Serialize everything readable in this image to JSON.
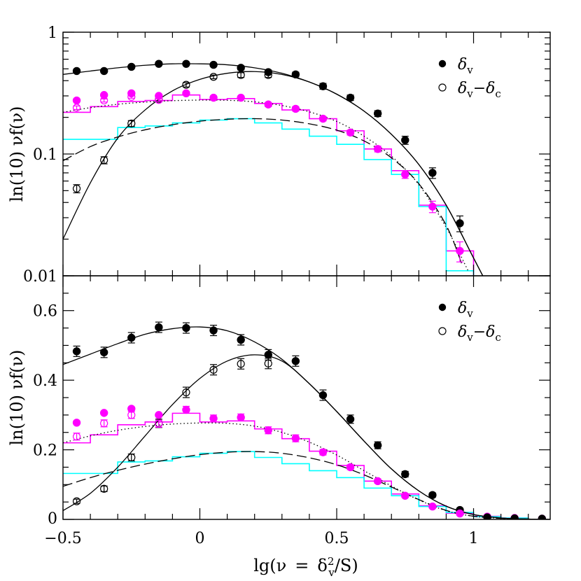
{
  "figure": {
    "xlabel": "lg(ν = δ_v²/S)",
    "xlabel_parts": {
      "pre": "lg(ν",
      "eq": "=",
      "delta": "δ",
      "sub": "v",
      "sup": "2",
      "post": "/S)"
    },
    "xlim": [
      -0.5,
      1.28
    ],
    "x_ticks": [
      -0.5,
      0,
      0.5,
      1
    ],
    "x_tick_labels": [
      "−0.5",
      "0",
      "0.5",
      "1"
    ]
  },
  "chart_data": [
    {
      "type": "scatter",
      "panel": "top",
      "ylabel": "ln(10) νf(ν)",
      "yscale": "log",
      "ylim": [
        0.01,
        1
      ],
      "y_ticks": [
        0.01,
        0.1,
        1
      ],
      "y_tick_labels": [
        "0.01",
        "0.1",
        "1"
      ],
      "legend_placement": "top-right",
      "legend": [
        {
          "marker": "filled-circle",
          "label": "δv",
          "parts": [
            "δ",
            "v"
          ]
        },
        {
          "marker": "open-circle",
          "label": "δv−δc",
          "parts": [
            "δ",
            "v",
            "−δ",
            "c"
          ]
        }
      ],
      "series": [
        {
          "marker": "filled-circle",
          "color": "#000000",
          "x": [
            -0.45,
            -0.35,
            -0.25,
            -0.15,
            -0.05,
            0.05,
            0.15,
            0.25,
            0.35,
            0.45,
            0.55,
            0.65,
            0.75,
            0.85,
            0.95
          ],
          "y": [
            0.48,
            0.48,
            0.52,
            0.55,
            0.55,
            0.54,
            0.51,
            0.47,
            0.45,
            0.36,
            0.29,
            0.215,
            0.13,
            0.07,
            0.027
          ],
          "err": [
            0,
            0,
            0,
            0,
            0,
            0,
            0.02,
            0.02,
            0.02,
            0.02,
            0.015,
            0.012,
            0.01,
            0.007,
            0.004
          ]
        },
        {
          "marker": "open-circle",
          "color": "#000000",
          "x": [
            -0.45,
            -0.35,
            -0.25,
            -0.15,
            -0.05,
            0.05,
            0.15,
            0.25
          ],
          "y": [
            0.052,
            0.089,
            0.178,
            0.28,
            0.37,
            0.43,
            0.445,
            0.445
          ],
          "err": [
            0.004,
            0.006,
            0.01,
            0.012,
            0.015,
            0.015,
            0.02,
            0.02
          ]
        },
        {
          "marker": "filled-circle",
          "color": "#ff00ff",
          "x": [
            -0.45,
            -0.35,
            -0.25,
            -0.15,
            -0.05,
            0.05,
            0.15,
            0.25,
            0.35,
            0.45,
            0.55,
            0.65,
            0.75,
            0.85,
            0.95
          ],
          "y": [
            0.275,
            0.305,
            0.315,
            0.3,
            0.315,
            0.29,
            0.29,
            0.255,
            0.235,
            0.195,
            0.15,
            0.11,
            0.068,
            0.037,
            0.016
          ],
          "err": [
            0,
            0,
            0,
            0,
            0,
            0,
            0,
            0.01,
            0.01,
            0.008,
            0.007,
            0.006,
            0.005,
            0.004,
            0.003
          ]
        },
        {
          "marker": "open-circle",
          "color": "#ff00ff",
          "x": [
            -0.45,
            -0.35,
            -0.25,
            -0.15
          ],
          "y": [
            0.24,
            0.275,
            0.295,
            0.278
          ],
          "err": [
            0.008,
            0.008,
            0.008,
            0.008
          ]
        }
      ],
      "histograms": [
        {
          "color": "#ff00ff",
          "edges": [
            -0.5,
            -0.4,
            -0.3,
            -0.2,
            -0.1,
            0,
            0.1,
            0.2,
            0.3,
            0.4,
            0.5,
            0.6,
            0.7,
            0.8,
            0.9,
            1.0
          ],
          "values": [
            0.22,
            0.245,
            0.27,
            0.275,
            0.305,
            0.28,
            0.285,
            0.26,
            0.23,
            0.195,
            0.155,
            0.11,
            0.073,
            0.038,
            0.016
          ]
        },
        {
          "color": "#00ffff",
          "edges": [
            -0.5,
            -0.4,
            -0.3,
            -0.2,
            -0.1,
            0,
            0.1,
            0.2,
            0.3,
            0.4,
            0.5,
            0.6,
            0.7,
            0.8,
            0.9,
            1.0
          ],
          "values": [
            0.132,
            0.132,
            0.165,
            0.17,
            0.18,
            0.19,
            0.195,
            0.18,
            0.16,
            0.14,
            0.12,
            0.09,
            0.068,
            0.037,
            0.011
          ]
        }
      ],
      "curves": [
        {
          "style": "solid",
          "color": "#000000",
          "x": [
            -0.5,
            -0.4,
            -0.3,
            -0.2,
            -0.1,
            0,
            0.1,
            0.2,
            0.3,
            0.4,
            0.5,
            0.6,
            0.7,
            0.8,
            0.9,
            1.0,
            1.05
          ],
          "y": [
            0.45,
            0.48,
            0.51,
            0.535,
            0.55,
            0.55,
            0.54,
            0.51,
            0.46,
            0.39,
            0.31,
            0.225,
            0.145,
            0.082,
            0.038,
            0.014,
            0.0085
          ]
        },
        {
          "style": "solid",
          "color": "#000000",
          "x": [
            -0.5,
            -0.4,
            -0.3,
            -0.2,
            -0.1,
            0,
            0.1,
            0.2,
            0.3,
            0.4,
            0.5,
            0.6,
            0.7,
            0.8,
            0.9,
            1.0,
            1.05
          ],
          "y": [
            0.02,
            0.058,
            0.135,
            0.23,
            0.33,
            0.41,
            0.46,
            0.475,
            0.45,
            0.39,
            0.31,
            0.225,
            0.145,
            0.082,
            0.038,
            0.014,
            0.0085
          ]
        },
        {
          "style": "dotted",
          "color": "#000000",
          "x": [
            -0.5,
            -0.4,
            -0.3,
            -0.2,
            -0.1,
            0,
            0.1,
            0.2,
            0.3,
            0.4,
            0.5,
            0.6,
            0.7,
            0.8,
            0.9,
            0.98
          ],
          "y": [
            0.22,
            0.24,
            0.256,
            0.267,
            0.274,
            0.277,
            0.276,
            0.268,
            0.25,
            0.222,
            0.185,
            0.14,
            0.096,
            0.056,
            0.025,
            0.011
          ]
        },
        {
          "style": "dashed",
          "color": "#000000",
          "x": [
            -0.5,
            -0.4,
            -0.3,
            -0.2,
            -0.1,
            0,
            0.1,
            0.2,
            0.3,
            0.4,
            0.5,
            0.6,
            0.7,
            0.8,
            0.9,
            0.96
          ],
          "y": [
            0.088,
            0.115,
            0.138,
            0.158,
            0.174,
            0.186,
            0.193,
            0.195,
            0.19,
            0.177,
            0.157,
            0.128,
            0.093,
            0.057,
            0.026,
            0.012
          ]
        }
      ]
    },
    {
      "type": "scatter",
      "panel": "bottom",
      "ylabel": "ln(10) νf(ν)",
      "yscale": "linear",
      "ylim": [
        0,
        0.7
      ],
      "y_ticks": [
        0,
        0.2,
        0.4,
        0.6
      ],
      "y_tick_labels": [
        "0",
        "0.2",
        "0.4",
        "0.6"
      ],
      "legend_placement": "top-right",
      "legend": [
        {
          "marker": "filled-circle",
          "label": "δv",
          "parts": [
            "δ",
            "v"
          ]
        },
        {
          "marker": "open-circle",
          "label": "δv−δc",
          "parts": [
            "δ",
            "v",
            "−δ",
            "c"
          ]
        }
      ],
      "series": [
        {
          "marker": "filled-circle",
          "color": "#000000",
          "x": [
            -0.45,
            -0.35,
            -0.25,
            -0.15,
            -0.05,
            0.05,
            0.15,
            0.25,
            0.35,
            0.45,
            0.55,
            0.65,
            0.75,
            0.85,
            0.95
          ],
          "y": [
            0.483,
            0.48,
            0.522,
            0.552,
            0.55,
            0.543,
            0.516,
            0.473,
            0.455,
            0.357,
            0.288,
            0.213,
            0.13,
            0.07,
            0.027
          ],
          "err": [
            0.015,
            0.015,
            0.015,
            0.015,
            0.015,
            0.015,
            0.015,
            0.015,
            0.015,
            0.015,
            0.012,
            0.01,
            0.008,
            0.006,
            0.004
          ]
        },
        {
          "marker": "open-circle",
          "color": "#000000",
          "x": [
            -0.45,
            -0.35,
            -0.25,
            -0.15,
            -0.05,
            0.05,
            0.15,
            0.25
          ],
          "y": [
            0.052,
            0.088,
            0.178,
            0.276,
            0.365,
            0.43,
            0.447,
            0.448
          ],
          "err": [
            0.006,
            0.008,
            0.01,
            0.012,
            0.015,
            0.015,
            0.015,
            0.015
          ]
        },
        {
          "marker": "filled-circle",
          "color": "#ff00ff",
          "x": [
            -0.45,
            -0.35,
            -0.25,
            -0.15,
            -0.05,
            0.05,
            0.15,
            0.25,
            0.35,
            0.45,
            0.55,
            0.65,
            0.75,
            0.85,
            0.95,
            1.05,
            1.15,
            1.25
          ],
          "y": [
            0.278,
            0.306,
            0.318,
            0.3,
            0.315,
            0.29,
            0.293,
            0.256,
            0.233,
            0.193,
            0.15,
            0.11,
            0.068,
            0.037,
            0.017,
            0.008,
            0.004,
            0.002
          ],
          "err": [
            0,
            0,
            0,
            0,
            0.01,
            0.01,
            0.01,
            0.01,
            0.01,
            0.008,
            0.007,
            0.006,
            0.005,
            0.004,
            0.003,
            0,
            0,
            0
          ]
        },
        {
          "marker": "open-circle",
          "color": "#ff00ff",
          "x": [
            -0.45,
            -0.35,
            -0.25,
            -0.15
          ],
          "y": [
            0.238,
            0.276,
            0.3,
            0.275
          ],
          "err": [
            0.01,
            0.01,
            0.01,
            0.01
          ]
        },
        {
          "marker": "filled-circle",
          "color": "#000000",
          "x": [
            1.05,
            1.15,
            1.25
          ],
          "y": [
            0.006,
            0.003,
            0.002
          ],
          "err": [
            0,
            0,
            0
          ]
        }
      ],
      "histograms": [
        {
          "color": "#ff00ff",
          "edges": [
            -0.5,
            -0.4,
            -0.3,
            -0.2,
            -0.1,
            0,
            0.1,
            0.2,
            0.3,
            0.4,
            0.5,
            0.6,
            0.7,
            0.8,
            0.9,
            1.0,
            1.1,
            1.2
          ],
          "values": [
            0.22,
            0.243,
            0.272,
            0.28,
            0.305,
            0.28,
            0.283,
            0.26,
            0.232,
            0.196,
            0.155,
            0.11,
            0.073,
            0.039,
            0.018,
            0.009,
            0.004
          ]
        },
        {
          "color": "#00ffff",
          "edges": [
            -0.5,
            -0.4,
            -0.3,
            -0.2,
            -0.1,
            0,
            0.1,
            0.2,
            0.3,
            0.4,
            0.5,
            0.6,
            0.7,
            0.8,
            0.9,
            1.0,
            1.1,
            1.2
          ],
          "values": [
            0.132,
            0.132,
            0.165,
            0.168,
            0.18,
            0.19,
            0.195,
            0.178,
            0.16,
            0.14,
            0.12,
            0.09,
            0.068,
            0.037,
            0.02,
            0.008,
            0.004
          ]
        }
      ],
      "curves": [
        {
          "style": "solid",
          "color": "#000000",
          "x": [
            -0.5,
            -0.4,
            -0.3,
            -0.2,
            -0.1,
            0,
            0.1,
            0.2,
            0.3,
            0.4,
            0.5,
            0.6,
            0.7,
            0.8,
            0.9,
            1.0,
            1.1,
            1.2,
            1.28
          ],
          "y": [
            0.445,
            0.475,
            0.505,
            0.532,
            0.548,
            0.553,
            0.542,
            0.51,
            0.46,
            0.39,
            0.31,
            0.225,
            0.145,
            0.082,
            0.038,
            0.014,
            0.004,
            0.001,
            0
          ]
        },
        {
          "style": "solid",
          "color": "#000000",
          "x": [
            -0.5,
            -0.4,
            -0.3,
            -0.2,
            -0.1,
            0,
            0.1,
            0.2,
            0.3,
            0.4,
            0.5,
            0.6,
            0.7,
            0.8,
            0.9,
            1.0,
            1.1,
            1.2,
            1.28
          ],
          "y": [
            0.025,
            0.075,
            0.15,
            0.24,
            0.33,
            0.405,
            0.455,
            0.473,
            0.455,
            0.39,
            0.31,
            0.225,
            0.145,
            0.082,
            0.038,
            0.014,
            0.004,
            0.001,
            0
          ]
        },
        {
          "style": "dotted",
          "color": "#000000",
          "x": [
            -0.5,
            -0.4,
            -0.3,
            -0.2,
            -0.1,
            0,
            0.1,
            0.2,
            0.3,
            0.4,
            0.5,
            0.6,
            0.7,
            0.8,
            0.9,
            1.0,
            1.1,
            1.2
          ],
          "y": [
            0.22,
            0.24,
            0.256,
            0.267,
            0.274,
            0.277,
            0.276,
            0.268,
            0.25,
            0.222,
            0.185,
            0.14,
            0.096,
            0.056,
            0.025,
            0.009,
            0.003,
            0.001
          ]
        },
        {
          "style": "dashed",
          "color": "#000000",
          "x": [
            -0.5,
            -0.4,
            -0.3,
            -0.2,
            -0.1,
            0,
            0.1,
            0.2,
            0.3,
            0.4,
            0.5,
            0.6,
            0.7,
            0.8,
            0.9,
            1.0,
            1.1,
            1.2
          ],
          "y": [
            0.095,
            0.12,
            0.141,
            0.159,
            0.174,
            0.186,
            0.193,
            0.195,
            0.19,
            0.177,
            0.157,
            0.128,
            0.093,
            0.057,
            0.026,
            0.009,
            0.003,
            0.001
          ]
        }
      ]
    }
  ]
}
